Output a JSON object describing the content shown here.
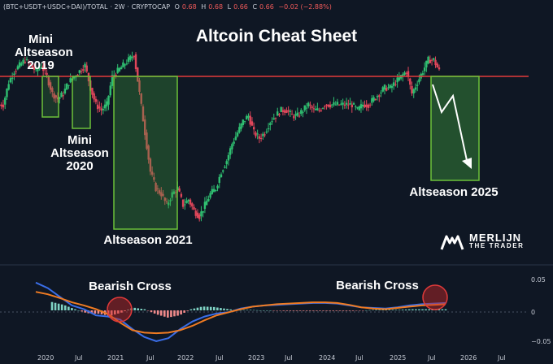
{
  "header": {
    "symbol": "(BTC+USDT+USDC+DAI)/TOTAL",
    "interval": "· 2W ·",
    "exchange": "CRYPTOCAP",
    "o_label": "O",
    "o_value": "0.68",
    "h_label": "H",
    "h_value": "0.68",
    "l_label": "L",
    "l_value": "0.66",
    "c_label": "C",
    "c_value": "0.66",
    "change": "−0.02 (−2.88%)"
  },
  "logo": {
    "line1": "MERLIJN",
    "line2": "THE TRADER"
  },
  "chart_data": [
    {
      "type": "candlestick",
      "title": "Altcoin Cheat Sheet",
      "x_ticks": [
        "2020",
        "Jul",
        "2021",
        "Jul",
        "2022",
        "Jul",
        "2023",
        "Jul",
        "2024",
        "Jul",
        "2025",
        "Jul",
        "2026",
        "Jul"
      ],
      "y_range": [
        0.38,
        0.7
      ],
      "resistance_level": 0.68,
      "close_series": [
        0.6,
        0.64,
        0.66,
        0.67,
        0.68,
        0.67,
        0.66,
        0.67,
        0.65,
        0.62,
        0.61,
        0.62,
        0.64,
        0.65,
        0.66,
        0.67,
        0.63,
        0.6,
        0.59,
        0.6,
        0.65,
        0.66,
        0.67,
        0.68,
        0.69,
        0.62,
        0.55,
        0.48,
        0.45,
        0.44,
        0.42,
        0.44,
        0.45,
        0.42,
        0.43,
        0.41,
        0.4,
        0.42,
        0.44,
        0.45,
        0.48,
        0.5,
        0.53,
        0.55,
        0.57,
        0.58,
        0.55,
        0.54,
        0.55,
        0.57,
        0.58,
        0.59,
        0.59,
        0.58,
        0.58,
        0.59,
        0.6,
        0.59,
        0.59,
        0.6,
        0.6,
        0.6,
        0.6,
        0.6,
        0.6,
        0.59,
        0.6,
        0.6,
        0.61,
        0.62,
        0.63,
        0.63,
        0.64,
        0.65,
        0.66,
        0.62,
        0.64,
        0.66,
        0.68,
        0.68,
        0.66
      ],
      "annotations": [
        {
          "label": "Mini Altseason 2019",
          "period": "2019"
        },
        {
          "label": "Mini Altseason 2020",
          "period": "2020"
        },
        {
          "label": "Altseason 2021",
          "period": "2021"
        },
        {
          "label": "Altseason 2025",
          "period": "2025"
        }
      ]
    },
    {
      "type": "line",
      "y_ticks": [
        "0.05",
        "0",
        "−0.05"
      ],
      "y_range": [
        -0.05,
        0.05
      ],
      "series": [
        {
          "color": "#3a6ee8",
          "values": [
            0.045,
            0.036,
            0.022,
            0.008,
            0.002,
            -0.008,
            -0.01,
            -0.015,
            -0.03,
            -0.043,
            -0.05,
            -0.045,
            -0.03,
            -0.018,
            -0.01,
            -0.005,
            -0.003,
            0.003,
            0.006,
            0.008,
            0.009,
            0.01,
            0.011,
            0.012,
            0.012,
            0.011,
            0.008,
            0.005,
            0.004,
            0.003,
            0.005,
            0.008,
            0.01,
            0.011,
            0.012
          ]
        },
        {
          "color": "#f07b22",
          "values": [
            0.03,
            0.026,
            0.02,
            0.013,
            0.008,
            0.002,
            -0.006,
            -0.02,
            -0.032,
            -0.036,
            -0.037,
            -0.036,
            -0.032,
            -0.025,
            -0.016,
            -0.008,
            -0.003,
            0.002,
            0.006,
            0.008,
            0.01,
            0.011,
            0.012,
            0.013,
            0.013,
            0.012,
            0.009,
            0.005,
            0.003,
            0.002,
            0.004,
            0.006,
            0.008,
            0.009,
            0.01
          ]
        }
      ],
      "annotations": [
        {
          "label": "Bearish Cross"
        },
        {
          "label": "Bearish Cross"
        }
      ]
    }
  ]
}
